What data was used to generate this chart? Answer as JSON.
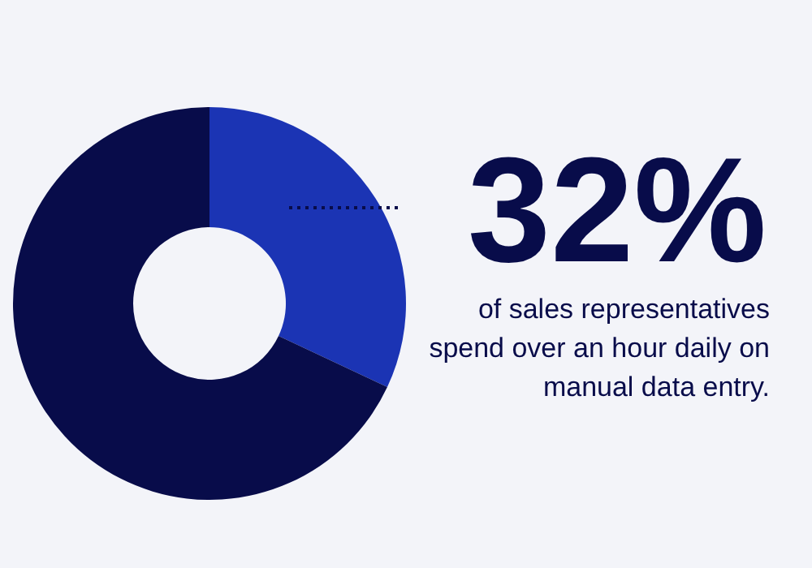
{
  "chart_data": {
    "type": "donut",
    "categories": [
      null,
      null
    ],
    "values": [
      32,
      68
    ],
    "colors": [
      "#1b34b4",
      "#080c4a"
    ],
    "value_labels": [
      "32%",
      null
    ],
    "annotations": [
      "of sales representatives spend over an hour daily on manual data entry."
    ]
  }
}
